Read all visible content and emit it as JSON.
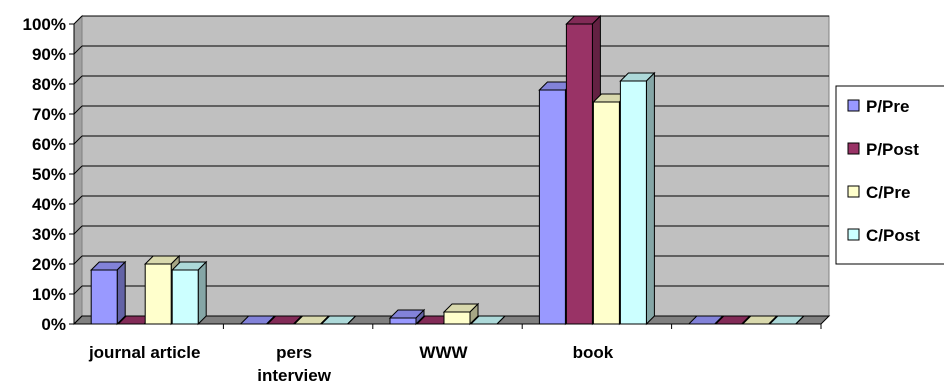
{
  "chart_data": {
    "type": "bar",
    "title": "",
    "xlabel": "",
    "ylabel": "",
    "ylim": [
      0,
      100
    ],
    "yticks": [
      "0%",
      "10%",
      "20%",
      "30%",
      "40%",
      "50%",
      "60%",
      "70%",
      "80%",
      "90%",
      "100%"
    ],
    "categories": [
      "journal article",
      "pers interview",
      "WWW",
      "book",
      ""
    ],
    "category_lines": [
      [
        "journal article"
      ],
      [
        "pers",
        "interview"
      ],
      [
        "WWW"
      ],
      [
        "book"
      ],
      []
    ],
    "series": [
      {
        "name": "P/Pre",
        "color": "#9999ff",
        "values": [
          18,
          0,
          2,
          78,
          0
        ]
      },
      {
        "name": "P/Post",
        "color": "#993366",
        "values": [
          0,
          0,
          0,
          100,
          0
        ]
      },
      {
        "name": "C/Pre",
        "color": "#ffffcc",
        "values": [
          20,
          0,
          4,
          74,
          0
        ]
      },
      {
        "name": "C/Post",
        "color": "#ccffff",
        "values": [
          18,
          0,
          0,
          81,
          0
        ]
      }
    ],
    "grid": true,
    "plot_background": "#c0c0c0",
    "legend_position": "right",
    "three_d": true
  }
}
